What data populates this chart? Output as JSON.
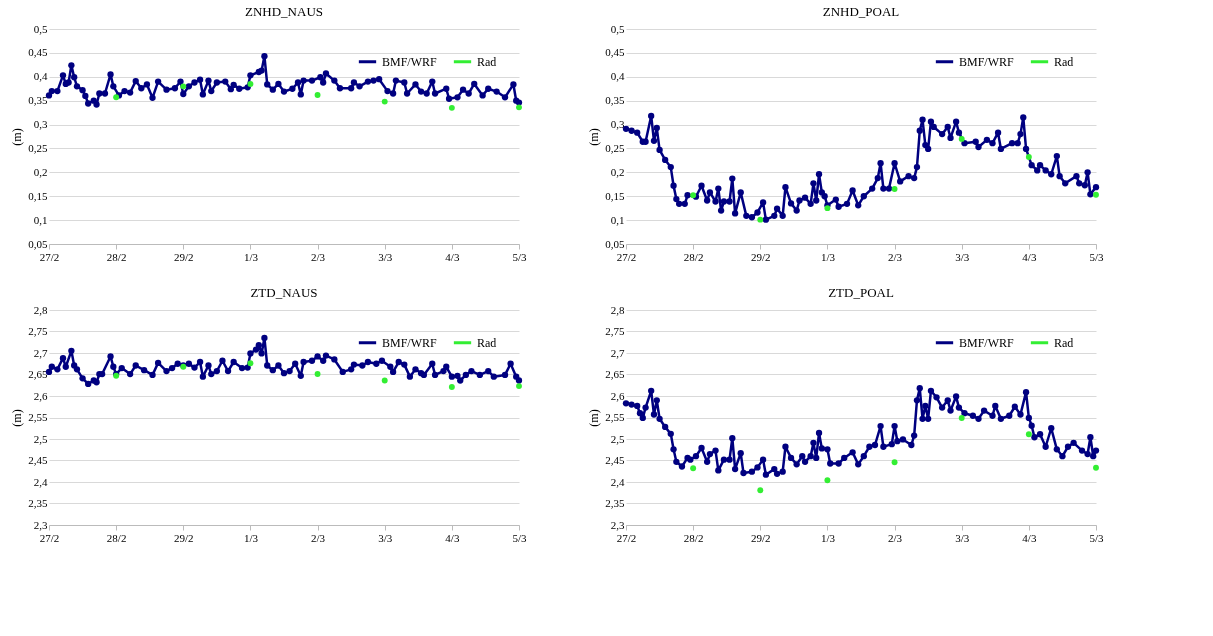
{
  "chart_data": [
    {
      "type": "line",
      "title": "ZNHD_NAUS",
      "ylabel": "(m)",
      "grid": "y",
      "legend": "top right",
      "marker": "circle",
      "xlim": [
        "--02-27",
        "--03-05"
      ],
      "xticks": [
        {
          "value": "--02-27",
          "label": "27/2"
        },
        {
          "value": "--02-28",
          "label": "28/2"
        },
        {
          "value": "--02-29",
          "label": "29/2"
        },
        {
          "value": "--03-01",
          "label": "1/3"
        },
        {
          "value": "--03-02",
          "label": "2/3"
        },
        {
          "value": "--03-03",
          "label": "3/3"
        },
        {
          "value": "--03-04",
          "label": "4/3"
        },
        {
          "value": "--03-05",
          "label": "5/3"
        }
      ],
      "ylim": [
        0.05,
        0.5
      ],
      "yticks": [
        {
          "value": 0.05,
          "label": "0,05"
        },
        {
          "value": 0.1,
          "label": "0,1"
        },
        {
          "value": 0.15,
          "label": "0,15"
        },
        {
          "value": 0.2,
          "label": "0,2"
        },
        {
          "value": 0.25,
          "label": "0,25"
        },
        {
          "value": 0.3,
          "label": "0,3"
        },
        {
          "value": 0.35,
          "label": "0,35"
        },
        {
          "value": 0.4,
          "label": "0,4"
        },
        {
          "value": 0.45,
          "label": "0,45"
        },
        {
          "value": 0.5,
          "label": "0,5"
        }
      ],
      "series": [
        {
          "name": "BMF/WRF",
          "color": "#000080",
          "x": [
            "--02-27T00:00",
            "--02-27T01:00",
            "--02-27T03:00",
            "--02-27T05:00",
            "--02-27T06:00",
            "--02-27T07:00",
            "--02-27T08:00",
            "--02-27T09:00",
            "--02-27T10:00",
            "--02-27T12:00",
            "--02-27T13:00",
            "--02-27T14:00",
            "--02-27T16:00",
            "--02-27T17:00",
            "--02-27T18:00",
            "--02-27T20:00",
            "--02-27T22:00",
            "--02-27T23:00",
            "--02-28T01:00",
            "--02-28T03:00",
            "--02-28T05:00",
            "--02-28T07:00",
            "--02-28T09:00",
            "--02-28T11:00",
            "--02-28T13:00",
            "--02-28T15:00",
            "--02-28T18:00",
            "--02-28T21:00",
            "--02-28T23:00",
            "--02-29T00:00",
            "--02-29T02:00",
            "--02-29T04:00",
            "--02-29T06:00",
            "--02-29T07:00",
            "--02-29T09:00",
            "--02-29T10:00",
            "--02-29T12:00",
            "--02-29T15:00",
            "--02-29T17:00",
            "--02-29T18:00",
            "--02-29T20:00",
            "--02-29T23:00",
            "--03-01T00:00",
            "--03-01T03:00",
            "--03-01T04:00",
            "--03-01T05:00",
            "--03-01T06:00",
            "--03-01T08:00",
            "--03-01T10:00",
            "--03-01T12:00",
            "--03-01T15:00",
            "--03-01T17:00",
            "--03-01T18:00",
            "--03-01T19:00",
            "--03-01T22:00",
            "--03-02T01:00",
            "--03-02T02:00",
            "--03-02T03:00",
            "--03-02T06:00",
            "--03-02T08:00",
            "--03-02T12:00",
            "--03-02T13:00",
            "--03-02T15:00",
            "--03-02T18:00",
            "--03-02T20:00",
            "--03-02T22:00",
            "--03-03T01:00",
            "--03-03T03:00",
            "--03-03T04:00",
            "--03-03T07:00",
            "--03-03T08:00",
            "--03-03T11:00",
            "--03-03T13:00",
            "--03-03T15:00",
            "--03-03T17:00",
            "--03-03T18:00",
            "--03-03T22:00",
            "--03-03T23:00",
            "--03-04T02:00",
            "--03-04T04:00",
            "--03-04T06:00",
            "--03-04T08:00",
            "--03-04T11:00",
            "--03-04T13:00",
            "--03-04T16:00",
            "--03-04T19:00",
            "--03-04T22:00",
            "--03-04T23:00",
            "--03-05T00:00"
          ],
          "values": [
            0.361,
            0.37,
            0.37,
            0.403,
            0.385,
            0.388,
            0.424,
            0.399,
            0.38,
            0.372,
            0.36,
            0.344,
            0.35,
            0.342,
            0.365,
            0.365,
            0.405,
            0.38,
            0.361,
            0.37,
            0.367,
            0.391,
            0.376,
            0.384,
            0.356,
            0.39,
            0.373,
            0.376,
            0.39,
            0.364,
            0.38,
            0.388,
            0.394,
            0.363,
            0.392,
            0.37,
            0.388,
            0.39,
            0.374,
            0.383,
            0.375,
            0.378,
            0.403,
            0.41,
            0.413,
            0.443,
            0.384,
            0.373,
            0.385,
            0.369,
            0.375,
            0.388,
            0.363,
            0.392,
            0.392,
            0.399,
            0.388,
            0.407,
            0.392,
            0.376,
            0.376,
            0.388,
            0.38,
            0.39,
            0.392,
            0.395,
            0.37,
            0.365,
            0.392,
            0.388,
            0.365,
            0.384,
            0.369,
            0.365,
            0.39,
            0.365,
            0.375,
            0.354,
            0.357,
            0.373,
            0.365,
            0.385,
            0.361,
            0.375,
            0.369,
            0.357,
            0.384,
            0.35,
            0.346
          ]
        },
        {
          "name": "Rad",
          "type": "scatter",
          "color": "#33ee33",
          "x": [
            "--02-28",
            "--02-29",
            "--03-01",
            "--03-02",
            "--03-03",
            "--03-04",
            "--03-05"
          ],
          "values": [
            0.357,
            0.38,
            0.385,
            0.362,
            0.348,
            0.335,
            0.336
          ]
        }
      ]
    },
    {
      "type": "line",
      "title": "ZNHD_POAL",
      "ylabel": "(m)",
      "grid": "y",
      "legend": "top right",
      "marker": "circle",
      "xlim": [
        "--02-27",
        "--03-05"
      ],
      "xticks": [
        {
          "value": "--02-27",
          "label": "27/2"
        },
        {
          "value": "--02-28",
          "label": "28/2"
        },
        {
          "value": "--02-29",
          "label": "29/2"
        },
        {
          "value": "--03-01",
          "label": "1/3"
        },
        {
          "value": "--03-02",
          "label": "2/3"
        },
        {
          "value": "--03-03",
          "label": "3/3"
        },
        {
          "value": "--03-04",
          "label": "4/3"
        },
        {
          "value": "--03-05",
          "label": "5/3"
        }
      ],
      "ylim": [
        0.05,
        0.5
      ],
      "yticks": [
        {
          "value": 0.05,
          "label": "0,05"
        },
        {
          "value": 0.1,
          "label": "0,1"
        },
        {
          "value": 0.15,
          "label": "0,15"
        },
        {
          "value": 0.2,
          "label": "0,2"
        },
        {
          "value": 0.25,
          "label": "0,25"
        },
        {
          "value": 0.3,
          "label": "0,3"
        },
        {
          "value": 0.35,
          "label": "0,35"
        },
        {
          "value": 0.4,
          "label": "0,4"
        },
        {
          "value": 0.45,
          "label": "0,45"
        },
        {
          "value": 0.5,
          "label": "0,5"
        }
      ],
      "series": [
        {
          "name": "BMF/WRF",
          "color": "#000080",
          "x": [
            "--02-27T00:00",
            "--02-27T02:00",
            "--02-27T04:00",
            "--02-27T06:00",
            "--02-27T07:00",
            "--02-27T09:00",
            "--02-27T10:00",
            "--02-27T11:00",
            "--02-27T12:00",
            "--02-27T14:00",
            "--02-27T16:00",
            "--02-27T17:00",
            "--02-27T18:00",
            "--02-27T19:00",
            "--02-27T21:00",
            "--02-27T22:00",
            "--02-28T01:00",
            "--02-28T03:00",
            "--02-28T05:00",
            "--02-28T06:00",
            "--02-28T08:00",
            "--02-28T09:00",
            "--02-28T10:00",
            "--02-28T11:00",
            "--02-28T13:00",
            "--02-28T14:00",
            "--02-28T15:00",
            "--02-28T17:00",
            "--02-28T19:00",
            "--02-28T21:00",
            "--02-28T23:00",
            "--02-29T01:00",
            "--02-29T02:00",
            "--02-29T05:00",
            "--02-29T06:00",
            "--02-29T08:00",
            "--02-29T09:00",
            "--02-29T11:00",
            "--02-29T13:00",
            "--02-29T14:00",
            "--02-29T16:00",
            "--02-29T18:00",
            "--02-29T19:00",
            "--02-29T20:00",
            "--02-29T21:00",
            "--02-29T22:00",
            "--02-29T23:00",
            "--03-01T00:00",
            "--03-01T03:00",
            "--03-01T04:00",
            "--03-01T07:00",
            "--03-01T09:00",
            "--03-01T11:00",
            "--03-01T13:00",
            "--03-01T16:00",
            "--03-01T18:00",
            "--03-01T19:00",
            "--03-01T20:00",
            "--03-01T22:00",
            "--03-02T00:00",
            "--03-02T02:00",
            "--03-02T05:00",
            "--03-02T07:00",
            "--03-02T08:00",
            "--03-02T09:00",
            "--03-02T10:00",
            "--03-02T11:00",
            "--03-02T12:00",
            "--03-02T13:00",
            "--03-02T14:00",
            "--03-02T17:00",
            "--03-02T19:00",
            "--03-02T20:00",
            "--03-02T22:00",
            "--03-02T23:00",
            "--03-03T01:00",
            "--03-03T05:00",
            "--03-03T06:00",
            "--03-03T09:00",
            "--03-03T11:00",
            "--03-03T13:00",
            "--03-03T14:00",
            "--03-03T18:00",
            "--03-03T20:00",
            "--03-03T21:00",
            "--03-03T22:00",
            "--03-03T23:00",
            "--03-04T01:00",
            "--03-04T03:00",
            "--03-04T04:00",
            "--03-04T06:00",
            "--03-04T08:00",
            "--03-04T10:00",
            "--03-04T11:00",
            "--03-04T13:00",
            "--03-04T17:00",
            "--03-04T18:00",
            "--03-04T20:00",
            "--03-04T21:00",
            "--03-04T22:00",
            "--03-05T00:00"
          ],
          "values": [
            0.291,
            0.287,
            0.283,
            0.264,
            0.264,
            0.318,
            0.266,
            0.293,
            0.247,
            0.226,
            0.211,
            0.172,
            0.144,
            0.134,
            0.134,
            0.152,
            0.149,
            0.172,
            0.141,
            0.158,
            0.139,
            0.166,
            0.12,
            0.139,
            0.139,
            0.187,
            0.114,
            0.158,
            0.109,
            0.106,
            0.116,
            0.137,
            0.101,
            0.109,
            0.124,
            0.109,
            0.169,
            0.135,
            0.12,
            0.141,
            0.147,
            0.134,
            0.177,
            0.141,
            0.196,
            0.158,
            0.15,
            0.131,
            0.143,
            0.128,
            0.134,
            0.162,
            0.131,
            0.15,
            0.166,
            0.188,
            0.219,
            0.166,
            0.166,
            0.219,
            0.181,
            0.192,
            0.188,
            0.211,
            0.287,
            0.31,
            0.257,
            0.249,
            0.306,
            0.295,
            0.28,
            0.295,
            0.272,
            0.306,
            0.283,
            0.261,
            0.264,
            0.253,
            0.268,
            0.261,
            0.283,
            0.249,
            0.261,
            0.261,
            0.28,
            0.315,
            0.249,
            0.215,
            0.204,
            0.215,
            0.204,
            0.196,
            0.234,
            0.192,
            0.177,
            0.192,
            0.177,
            0.173,
            0.2,
            0.154,
            0.169
          ]
        },
        {
          "name": "Rad",
          "type": "scatter",
          "color": "#33ee33",
          "x": [
            "--02-28",
            "--02-29",
            "--03-01",
            "--03-02",
            "--03-03",
            "--03-04",
            "--03-05"
          ],
          "values": [
            0.152,
            0.101,
            0.125,
            0.165,
            0.27,
            0.232,
            0.153
          ]
        }
      ]
    },
    {
      "type": "line",
      "title": "ZTD_NAUS",
      "ylabel": "(m)",
      "grid": "y",
      "legend": "top right",
      "marker": "circle",
      "xlim": [
        "--02-27",
        "--03-05"
      ],
      "xticks": [
        {
          "value": "--02-27",
          "label": "27/2"
        },
        {
          "value": "--02-28",
          "label": "28/2"
        },
        {
          "value": "--02-29",
          "label": "29/2"
        },
        {
          "value": "--03-01",
          "label": "1/3"
        },
        {
          "value": "--03-02",
          "label": "2/3"
        },
        {
          "value": "--03-03",
          "label": "3/3"
        },
        {
          "value": "--03-04",
          "label": "4/3"
        },
        {
          "value": "--03-05",
          "label": "5/3"
        }
      ],
      "ylim": [
        2.3,
        2.8
      ],
      "yticks": [
        {
          "value": 2.3,
          "label": "2,3"
        },
        {
          "value": 2.35,
          "label": "2,35"
        },
        {
          "value": 2.4,
          "label": "2,4"
        },
        {
          "value": 2.45,
          "label": "2,45"
        },
        {
          "value": 2.5,
          "label": "2,5"
        },
        {
          "value": 2.55,
          "label": "2,55"
        },
        {
          "value": 2.6,
          "label": "2,6"
        },
        {
          "value": 2.65,
          "label": "2,65"
        },
        {
          "value": 2.7,
          "label": "2,7"
        },
        {
          "value": 2.75,
          "label": "2,75"
        },
        {
          "value": 2.8,
          "label": "2,8"
        }
      ],
      "series": [
        {
          "name": "BMF/WRF",
          "color": "#000080",
          "x": [
            "--02-27T00:00",
            "--02-27T01:00",
            "--02-27T03:00",
            "--02-27T05:00",
            "--02-27T06:00",
            "--02-27T08:00",
            "--02-27T09:00",
            "--02-27T10:00",
            "--02-27T12:00",
            "--02-27T14:00",
            "--02-27T16:00",
            "--02-27T17:00",
            "--02-27T18:00",
            "--02-27T19:00",
            "--02-27T22:00",
            "--02-27T23:00",
            "--02-28T00:00",
            "--02-28T02:00",
            "--02-28T05:00",
            "--02-28T07:00",
            "--02-28T10:00",
            "--02-28T13:00",
            "--02-28T15:00",
            "--02-28T18:00",
            "--02-28T20:00",
            "--02-28T22:00",
            "--02-29T00:00",
            "--02-29T02:00",
            "--02-29T04:00",
            "--02-29T06:00",
            "--02-29T07:00",
            "--02-29T09:00",
            "--02-29T10:00",
            "--02-29T12:00",
            "--02-29T14:00",
            "--02-29T16:00",
            "--02-29T18:00",
            "--02-29T21:00",
            "--02-29T23:00",
            "--03-01T00:00",
            "--03-01T02:00",
            "--03-01T03:00",
            "--03-01T04:00",
            "--03-01T05:00",
            "--03-01T06:00",
            "--03-01T08:00",
            "--03-01T10:00",
            "--03-01T12:00",
            "--03-01T14:00",
            "--03-01T16:00",
            "--03-01T18:00",
            "--03-01T19:00",
            "--03-01T22:00",
            "--03-02T00:00",
            "--03-02T02:00",
            "--03-02T03:00",
            "--03-02T06:00",
            "--03-02T09:00",
            "--03-02T12:00",
            "--03-02T13:00",
            "--03-02T16:00",
            "--03-02T18:00",
            "--03-02T21:00",
            "--03-02T23:00",
            "--03-03T02:00",
            "--03-03T03:00",
            "--03-03T05:00",
            "--03-03T07:00",
            "--03-03T09:00",
            "--03-03T11:00",
            "--03-03T13:00",
            "--03-03T14:00",
            "--03-03T17:00",
            "--03-03T18:00",
            "--03-03T21:00",
            "--03-03T22:00",
            "--03-04T00:00",
            "--03-04T02:00",
            "--03-04T03:00",
            "--03-04T05:00",
            "--03-04T07:00",
            "--03-04T10:00",
            "--03-04T13:00",
            "--03-04T15:00",
            "--03-04T19:00",
            "--03-04T21:00",
            "--03-04T23:00",
            "--03-05T00:00"
          ],
          "values": [
            2.656,
            2.668,
            2.662,
            2.688,
            2.668,
            2.705,
            2.671,
            2.662,
            2.641,
            2.628,
            2.636,
            2.632,
            2.651,
            2.651,
            2.692,
            2.668,
            2.651,
            2.665,
            2.651,
            2.671,
            2.66,
            2.649,
            2.677,
            2.658,
            2.665,
            2.675,
            2.671,
            2.675,
            2.666,
            2.679,
            2.645,
            2.671,
            2.651,
            2.658,
            2.682,
            2.658,
            2.679,
            2.665,
            2.666,
            2.699,
            2.708,
            2.718,
            2.699,
            2.735,
            2.671,
            2.66,
            2.671,
            2.653,
            2.658,
            2.675,
            2.647,
            2.679,
            2.682,
            2.692,
            2.682,
            2.694,
            2.685,
            2.656,
            2.662,
            2.673,
            2.671,
            2.679,
            2.675,
            2.682,
            2.668,
            2.656,
            2.679,
            2.673,
            2.645,
            2.662,
            2.653,
            2.649,
            2.675,
            2.649,
            2.658,
            2.668,
            2.645,
            2.647,
            2.636,
            2.649,
            2.658,
            2.649,
            2.658,
            2.645,
            2.649,
            2.675,
            2.645,
            2.636
          ]
        },
        {
          "name": "Rad",
          "type": "scatter",
          "color": "#33ee33",
          "x": [
            "--02-28",
            "--02-29",
            "--03-01",
            "--03-02",
            "--03-03",
            "--03-04",
            "--03-05"
          ],
          "values": [
            2.647,
            2.668,
            2.676,
            2.651,
            2.636,
            2.621,
            2.623
          ]
        }
      ]
    },
    {
      "type": "line",
      "title": "ZTD_POAL",
      "ylabel": "(m)",
      "grid": "y",
      "legend": "top right",
      "marker": "circle",
      "xlim": [
        "--02-27",
        "--03-05"
      ],
      "xticks": [
        {
          "value": "--02-27",
          "label": "27/2"
        },
        {
          "value": "--02-28",
          "label": "28/2"
        },
        {
          "value": "--02-29",
          "label": "29/2"
        },
        {
          "value": "--03-01",
          "label": "1/3"
        },
        {
          "value": "--03-02",
          "label": "2/3"
        },
        {
          "value": "--03-03",
          "label": "3/3"
        },
        {
          "value": "--03-04",
          "label": "4/3"
        },
        {
          "value": "--03-05",
          "label": "5/3"
        }
      ],
      "ylim": [
        2.3,
        2.8
      ],
      "yticks": [
        {
          "value": 2.3,
          "label": "2,3"
        },
        {
          "value": 2.35,
          "label": "2,35"
        },
        {
          "value": 2.4,
          "label": "2,4"
        },
        {
          "value": 2.45,
          "label": "2,45"
        },
        {
          "value": 2.5,
          "label": "2,5"
        },
        {
          "value": 2.55,
          "label": "2,55"
        },
        {
          "value": 2.6,
          "label": "2,6"
        },
        {
          "value": 2.65,
          "label": "2,65"
        },
        {
          "value": 2.7,
          "label": "2,7"
        },
        {
          "value": 2.75,
          "label": "2,75"
        },
        {
          "value": 2.8,
          "label": "2,8"
        }
      ],
      "series": [
        {
          "name": "BMF/WRF",
          "color": "#000080",
          "x": [
            "--02-27T00:00",
            "--02-27T02:00",
            "--02-27T04:00",
            "--02-27T05:00",
            "--02-27T06:00",
            "--02-27T07:00",
            "--02-27T09:00",
            "--02-27T10:00",
            "--02-27T11:00",
            "--02-27T12:00",
            "--02-27T14:00",
            "--02-27T16:00",
            "--02-27T17:00",
            "--02-27T18:00",
            "--02-27T20:00",
            "--02-27T22:00",
            "--02-27T23:00",
            "--02-28T01:00",
            "--02-28T03:00",
            "--02-28T05:00",
            "--02-28T06:00",
            "--02-28T08:00",
            "--02-28T09:00",
            "--02-28T11:00",
            "--02-28T13:00",
            "--02-28T14:00",
            "--02-28T15:00",
            "--02-28T17:00",
            "--02-28T18:00",
            "--02-28T21:00",
            "--02-28T23:00",
            "--02-29T01:00",
            "--02-29T02:00",
            "--02-29T05:00",
            "--02-29T06:00",
            "--02-29T08:00",
            "--02-29T09:00",
            "--02-29T11:00",
            "--02-29T13:00",
            "--02-29T15:00",
            "--02-29T16:00",
            "--02-29T18:00",
            "--02-29T19:00",
            "--02-29T20:00",
            "--02-29T21:00",
            "--02-29T22:00",
            "--03-01T00:00",
            "--03-01T01:00",
            "--03-01T04:00",
            "--03-01T06:00",
            "--03-01T09:00",
            "--03-01T11:00",
            "--03-01T13:00",
            "--03-01T15:00",
            "--03-01T17:00",
            "--03-01T19:00",
            "--03-01T20:00",
            "--03-01T23:00",
            "--03-02T00:00",
            "--03-02T01:00",
            "--03-02T03:00",
            "--03-02T06:00",
            "--03-02T07:00",
            "--03-02T08:00",
            "--03-02T09:00",
            "--03-02T10:00",
            "--03-02T11:00",
            "--03-02T12:00",
            "--03-02T13:00",
            "--03-02T15:00",
            "--03-02T17:00",
            "--03-02T19:00",
            "--03-02T20:00",
            "--03-02T22:00",
            "--03-02T23:00",
            "--03-03T01:00",
            "--03-03T04:00",
            "--03-03T06:00",
            "--03-03T08:00",
            "--03-03T11:00",
            "--03-03T12:00",
            "--03-03T14:00",
            "--03-03T17:00",
            "--03-03T19:00",
            "--03-03T21:00",
            "--03-03T23:00",
            "--03-04T00:00",
            "--03-04T01:00",
            "--03-04T02:00",
            "--03-04T04:00",
            "--03-04T06:00",
            "--03-04T08:00",
            "--03-04T10:00",
            "--03-04T12:00",
            "--03-04T14:00",
            "--03-04T16:00",
            "--03-04T19:00",
            "--03-04T21:00",
            "--03-04T22:00",
            "--03-04T23:00",
            "--03-05T00:00"
          ],
          "values": [
            2.583,
            2.58,
            2.577,
            2.56,
            2.549,
            2.573,
            2.612,
            2.557,
            2.59,
            2.547,
            2.528,
            2.512,
            2.476,
            2.447,
            2.436,
            2.456,
            2.452,
            2.46,
            2.479,
            2.447,
            2.465,
            2.473,
            2.427,
            2.452,
            2.452,
            2.502,
            2.43,
            2.467,
            2.421,
            2.424,
            2.434,
            2.452,
            2.417,
            2.43,
            2.419,
            2.424,
            2.482,
            2.456,
            2.441,
            2.46,
            2.447,
            2.46,
            2.491,
            2.456,
            2.514,
            2.478,
            2.476,
            2.443,
            2.443,
            2.456,
            2.469,
            2.441,
            2.46,
            2.482,
            2.486,
            2.53,
            2.482,
            2.488,
            2.53,
            2.495,
            2.499,
            2.486,
            2.508,
            2.59,
            2.618,
            2.547,
            2.577,
            2.547,
            2.612,
            2.597,
            2.573,
            2.59,
            2.566,
            2.599,
            2.573,
            2.56,
            2.554,
            2.547,
            2.566,
            2.554,
            2.577,
            2.547,
            2.554,
            2.575,
            2.557,
            2.609,
            2.549,
            2.531,
            2.504,
            2.511,
            2.482,
            2.525,
            2.476,
            2.46,
            2.482,
            2.491,
            2.473,
            2.465,
            2.504,
            2.46,
            2.473
          ]
        },
        {
          "name": "Rad",
          "type": "scatter",
          "color": "#33ee33",
          "x": [
            "--02-28",
            "--02-29",
            "--03-01",
            "--03-02",
            "--03-03",
            "--03-04",
            "--03-05"
          ],
          "values": [
            2.432,
            2.381,
            2.404,
            2.446,
            2.549,
            2.511,
            2.433
          ]
        }
      ]
    }
  ]
}
